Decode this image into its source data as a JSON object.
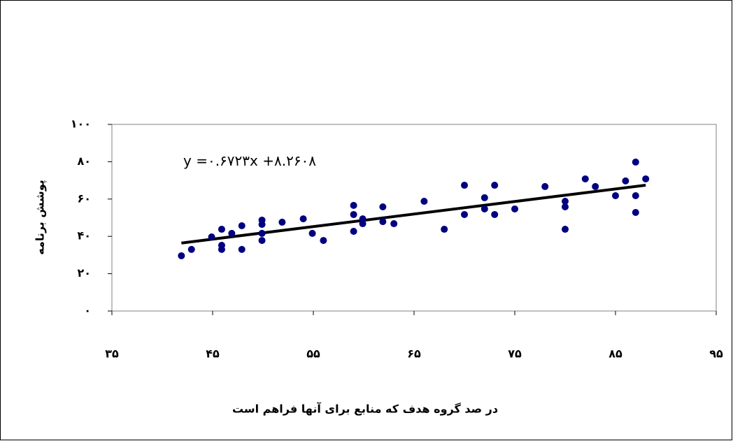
{
  "chart_data": {
    "type": "scatter",
    "x_label": "در صد گروه هدف که منابع برای آنها فراهم است",
    "y_label": "پوشش برنامه",
    "x": [
      41.9,
      42.9,
      44.9,
      45.9,
      45.9,
      45.9,
      46.9,
      47.9,
      47.9,
      49.9,
      49.9,
      49.9,
      49.9,
      51.9,
      54,
      54.9,
      56,
      59,
      59,
      59,
      59.9,
      59.9,
      61.9,
      61.9,
      63,
      66,
      68,
      70,
      70,
      72,
      72,
      73,
      73,
      75,
      78,
      80,
      80,
      80,
      82,
      83,
      85,
      86,
      87,
      87,
      87,
      88
    ],
    "values": [
      29.6,
      33,
      39.7,
      43.8,
      35.2,
      33,
      41.6,
      45.7,
      33,
      48.7,
      46.4,
      41.6,
      37.8,
      47.6,
      49.4,
      41.6,
      37.8,
      56.6,
      51.7,
      42.7,
      49.4,
      46.8,
      55.8,
      47.9,
      46.8,
      58.8,
      43.8,
      67.4,
      51.7,
      60.7,
      54.7,
      67.4,
      51.7,
      54.7,
      66.7,
      58.8,
      55.8,
      43.8,
      70.8,
      66.7,
      61.8,
      69.7,
      79.8,
      61.8,
      52.8,
      70.8
    ],
    "color": "#000080",
    "trendline": {
      "slope": 0.6723,
      "intercept": 8.2608,
      "label": "y =۰.۶۷۲۳x +۸.۲۶۰۸",
      "color": "#000000"
    },
    "xlim": [
      35,
      95
    ],
    "xticks": [
      {
        "value": 35,
        "label": "۳۵"
      },
      {
        "value": 45,
        "label": "۴۵"
      },
      {
        "value": 55,
        "label": "۵۵"
      },
      {
        "value": 65,
        "label": "۶۵"
      },
      {
        "value": 75,
        "label": "۷۵"
      },
      {
        "value": 85,
        "label": "۸۵"
      },
      {
        "value": 95,
        "label": "۹۵"
      }
    ],
    "ylim": [
      0,
      100
    ],
    "yticks": [
      {
        "value": 0,
        "label": "۰"
      },
      {
        "value": 20,
        "label": "۲۰"
      },
      {
        "value": 40,
        "label": "۴۰"
      },
      {
        "value": 60,
        "label": "۶۰"
      },
      {
        "value": 80,
        "label": "۸۰"
      },
      {
        "value": 100,
        "label": "۱۰۰"
      }
    ],
    "grid": false
  }
}
